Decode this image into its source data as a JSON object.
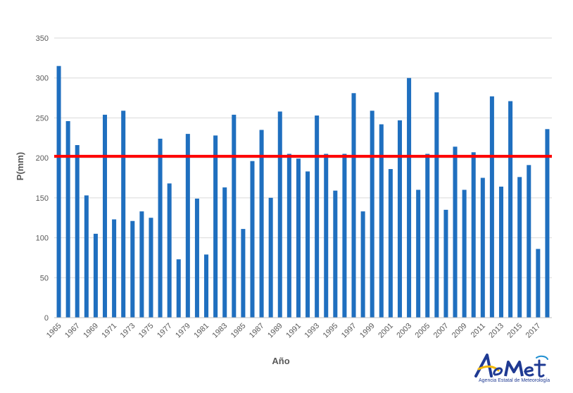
{
  "chart_data": {
    "type": "bar",
    "title": "",
    "xlabel": "Año",
    "ylabel": "P(mm)",
    "ylim": [
      0,
      350
    ],
    "yticks": [
      0,
      50,
      100,
      150,
      200,
      250,
      300,
      350
    ],
    "grid": true,
    "bar_color": "#1f6fbf",
    "reference_line": {
      "value": 202,
      "color": "#ff0000"
    },
    "x": [
      1965,
      1966,
      1967,
      1968,
      1969,
      1970,
      1971,
      1972,
      1973,
      1974,
      1975,
      1976,
      1977,
      1978,
      1979,
      1980,
      1981,
      1982,
      1983,
      1984,
      1985,
      1986,
      1987,
      1988,
      1989,
      1990,
      1991,
      1992,
      1993,
      1994,
      1995,
      1996,
      1997,
      1998,
      1999,
      2000,
      2001,
      2002,
      2003,
      2004,
      2005,
      2006,
      2007,
      2008,
      2009,
      2010,
      2011,
      2012,
      2013,
      2014,
      2015,
      2016,
      2017,
      2018
    ],
    "xtick_labels": [
      "1965",
      "1967",
      "1969",
      "1971",
      "1973",
      "1975",
      "1977",
      "1979",
      "1981",
      "1983",
      "1985",
      "1987",
      "1989",
      "1991",
      "1993",
      "1995",
      "1997",
      "1999",
      "2001",
      "2003",
      "2005",
      "2007",
      "2009",
      "2011",
      "2013",
      "2015",
      "2017"
    ],
    "values": [
      315,
      246,
      216,
      153,
      105,
      254,
      123,
      259,
      121,
      133,
      125,
      224,
      168,
      73,
      230,
      149,
      79,
      228,
      163,
      254,
      111,
      196,
      235,
      150,
      258,
      205,
      199,
      183,
      253,
      205,
      159,
      205,
      281,
      133,
      259,
      242,
      186,
      247,
      300,
      160,
      205,
      282,
      135,
      214,
      160,
      207,
      175,
      277,
      164,
      271,
      176,
      191,
      86,
      236
    ]
  },
  "logo": {
    "name": "AEMet",
    "subtitle": "Agencia Estatal de Meteorología"
  }
}
